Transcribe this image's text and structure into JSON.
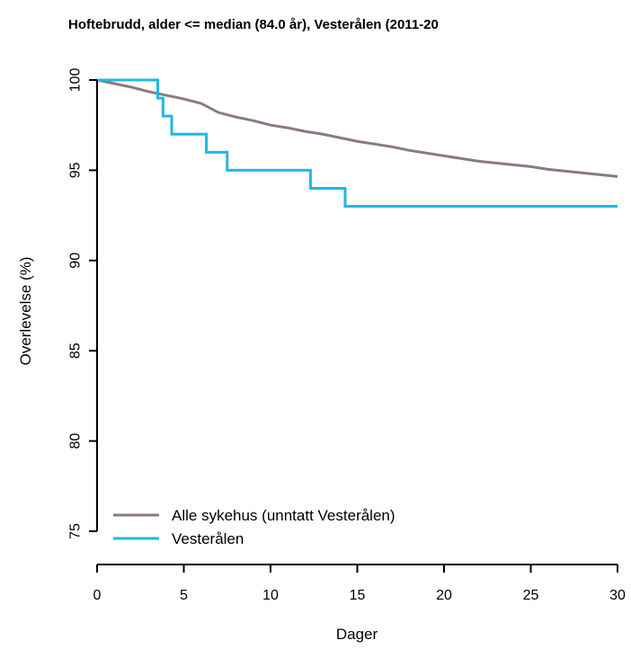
{
  "colors": {
    "series_all": "#8c7b75",
    "series_vesteralen": "#1fb8e6"
  },
  "chart_data": {
    "type": "line",
    "title": "Hoftebrudd, alder <= median (84.0 år), Vesterålen (2011-20",
    "xlabel": "Dager",
    "ylabel": "Overlevelse (%)",
    "xlim": [
      0,
      30
    ],
    "ylim": [
      75,
      100
    ],
    "x_ticks": [
      "0",
      "5",
      "10",
      "15",
      "20",
      "25",
      "30"
    ],
    "y_ticks": [
      "75",
      "80",
      "85",
      "90",
      "95",
      "100"
    ],
    "grid": false,
    "legend_position": "bottom-left",
    "series": [
      {
        "name": "Alle sykehus (unntatt Vesterålen)",
        "step": false,
        "x": [
          0,
          1,
          2,
          3,
          4,
          5,
          6,
          7,
          8,
          9,
          10,
          11,
          12,
          13,
          14,
          15,
          16,
          17,
          18,
          19,
          20,
          21,
          22,
          23,
          24,
          25,
          26,
          27,
          28,
          29,
          30
        ],
        "y": [
          100,
          99.8,
          99.6,
          99.35,
          99.15,
          98.95,
          98.7,
          98.2,
          97.95,
          97.75,
          97.5,
          97.35,
          97.15,
          97.0,
          96.8,
          96.6,
          96.45,
          96.3,
          96.1,
          95.95,
          95.8,
          95.65,
          95.5,
          95.4,
          95.3,
          95.2,
          95.05,
          94.95,
          94.85,
          94.75,
          94.65
        ]
      },
      {
        "name": "Vesterålen",
        "step": true,
        "x": [
          0,
          3.5,
          3.8,
          4.3,
          6.3,
          7.5,
          12.3,
          14.3,
          30
        ],
        "y": [
          100,
          99,
          98,
          97,
          96,
          95,
          94,
          93,
          93
        ]
      }
    ]
  }
}
